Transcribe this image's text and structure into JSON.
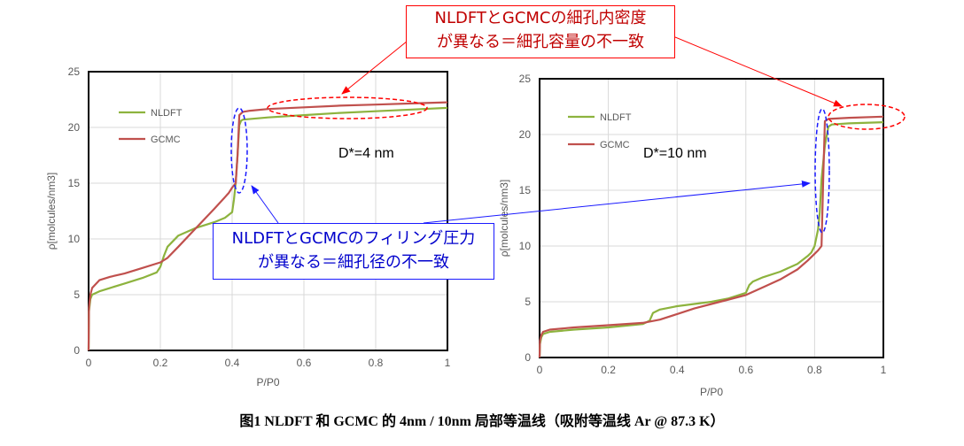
{
  "chart_data": [
    {
      "type": "line",
      "xlabel": "P/P0",
      "ylabel": "ρ[molcules/nm3]",
      "xlim": [
        0,
        1
      ],
      "ylim": [
        0,
        25
      ],
      "xticks": [
        "0",
        "0.2",
        "0.4",
        "0.6",
        "0.8",
        "1"
      ],
      "yticks": [
        "0",
        "5",
        "10",
        "15",
        "20",
        "25"
      ],
      "grid": true,
      "legend_position": "top-left",
      "annotation": "D*=4 nm",
      "series": [
        {
          "name": "NLDFT",
          "color": "#8DB33E",
          "x": [
            0,
            0.001,
            0.005,
            0.01,
            0.03,
            0.06,
            0.1,
            0.15,
            0.19,
            0.2,
            0.21,
            0.22,
            0.25,
            0.3,
            0.35,
            0.38,
            0.4,
            0.405,
            0.41,
            0.415,
            0.42,
            0.425,
            0.43,
            0.5,
            0.6,
            0.7,
            0.8,
            0.9,
            1.0
          ],
          "y": [
            0,
            3.5,
            4.6,
            5.0,
            5.3,
            5.6,
            6.0,
            6.5,
            7.0,
            7.5,
            8.5,
            9.3,
            10.3,
            11.0,
            11.5,
            11.9,
            12.4,
            13.5,
            15.0,
            17.5,
            20.2,
            20.6,
            20.7,
            20.9,
            21.1,
            21.3,
            21.45,
            21.6,
            21.75
          ]
        },
        {
          "name": "GCMC",
          "color": "#C0504D",
          "x": [
            0,
            0.001,
            0.005,
            0.01,
            0.03,
            0.06,
            0.1,
            0.15,
            0.2,
            0.22,
            0.25,
            0.3,
            0.35,
            0.39,
            0.4,
            0.41,
            0.415,
            0.42,
            0.43,
            0.45,
            0.5,
            0.6,
            0.7,
            0.8,
            0.9,
            1.0
          ],
          "y": [
            0,
            3.8,
            5.0,
            5.6,
            6.3,
            6.6,
            6.9,
            7.4,
            7.9,
            8.3,
            9.3,
            11.0,
            12.7,
            14.1,
            14.6,
            15.0,
            17.5,
            21.1,
            21.4,
            21.5,
            21.65,
            21.8,
            21.95,
            22.05,
            22.15,
            22.25
          ]
        }
      ]
    },
    {
      "type": "line",
      "xlabel": "P/P0",
      "ylabel": "ρ[molcules/nm3]",
      "xlim": [
        0,
        1
      ],
      "ylim": [
        0,
        25
      ],
      "xticks": [
        "0",
        "0.2",
        "0.4",
        "0.6",
        "0.8",
        "1"
      ],
      "yticks": [
        "0",
        "5",
        "10",
        "15",
        "20",
        "25"
      ],
      "grid": true,
      "legend_position": "top-left",
      "annotation": "D*=10 nm",
      "series": [
        {
          "name": "NLDFT",
          "color": "#8DB33E",
          "x": [
            0,
            0.001,
            0.005,
            0.01,
            0.03,
            0.1,
            0.2,
            0.3,
            0.32,
            0.33,
            0.35,
            0.4,
            0.45,
            0.5,
            0.55,
            0.6,
            0.61,
            0.62,
            0.65,
            0.7,
            0.75,
            0.78,
            0.79,
            0.8,
            0.81,
            0.815,
            0.82,
            0.83,
            0.84,
            0.85,
            0.9,
            1.0
          ],
          "y": [
            0,
            1.2,
            1.8,
            2.1,
            2.3,
            2.5,
            2.7,
            3.0,
            3.3,
            4.0,
            4.3,
            4.6,
            4.8,
            5.0,
            5.3,
            5.8,
            6.5,
            6.8,
            7.2,
            7.7,
            8.4,
            9.1,
            9.4,
            10.0,
            11.5,
            13.0,
            16.0,
            19.0,
            20.7,
            20.9,
            21.0,
            21.1
          ]
        },
        {
          "name": "GCMC",
          "color": "#C0504D",
          "x": [
            0,
            0.001,
            0.005,
            0.01,
            0.03,
            0.1,
            0.2,
            0.3,
            0.35,
            0.4,
            0.45,
            0.5,
            0.55,
            0.6,
            0.65,
            0.7,
            0.75,
            0.78,
            0.8,
            0.81,
            0.82,
            0.825,
            0.83,
            0.84,
            0.9,
            1.0
          ],
          "y": [
            0,
            1.5,
            2.0,
            2.3,
            2.5,
            2.7,
            2.9,
            3.1,
            3.4,
            3.9,
            4.4,
            4.8,
            5.2,
            5.6,
            6.3,
            7.0,
            7.9,
            8.7,
            9.3,
            9.6,
            10.0,
            16.0,
            21.2,
            21.4,
            21.5,
            21.6
          ]
        }
      ]
    }
  ],
  "callouts": {
    "red_line1": "NLDFTとGCMCの細孔内密度",
    "red_line2": "が異なる＝細孔容量の不一致",
    "blue_line1": "NLDFTとGCMCのフィリング圧力",
    "blue_line2": "が異なる＝細孔径の不一致"
  },
  "caption": "图1 NLDFT 和 GCMC 的 4nm / 10nm 局部等温线（吸附等温线 Ar @ 87.3 K）"
}
